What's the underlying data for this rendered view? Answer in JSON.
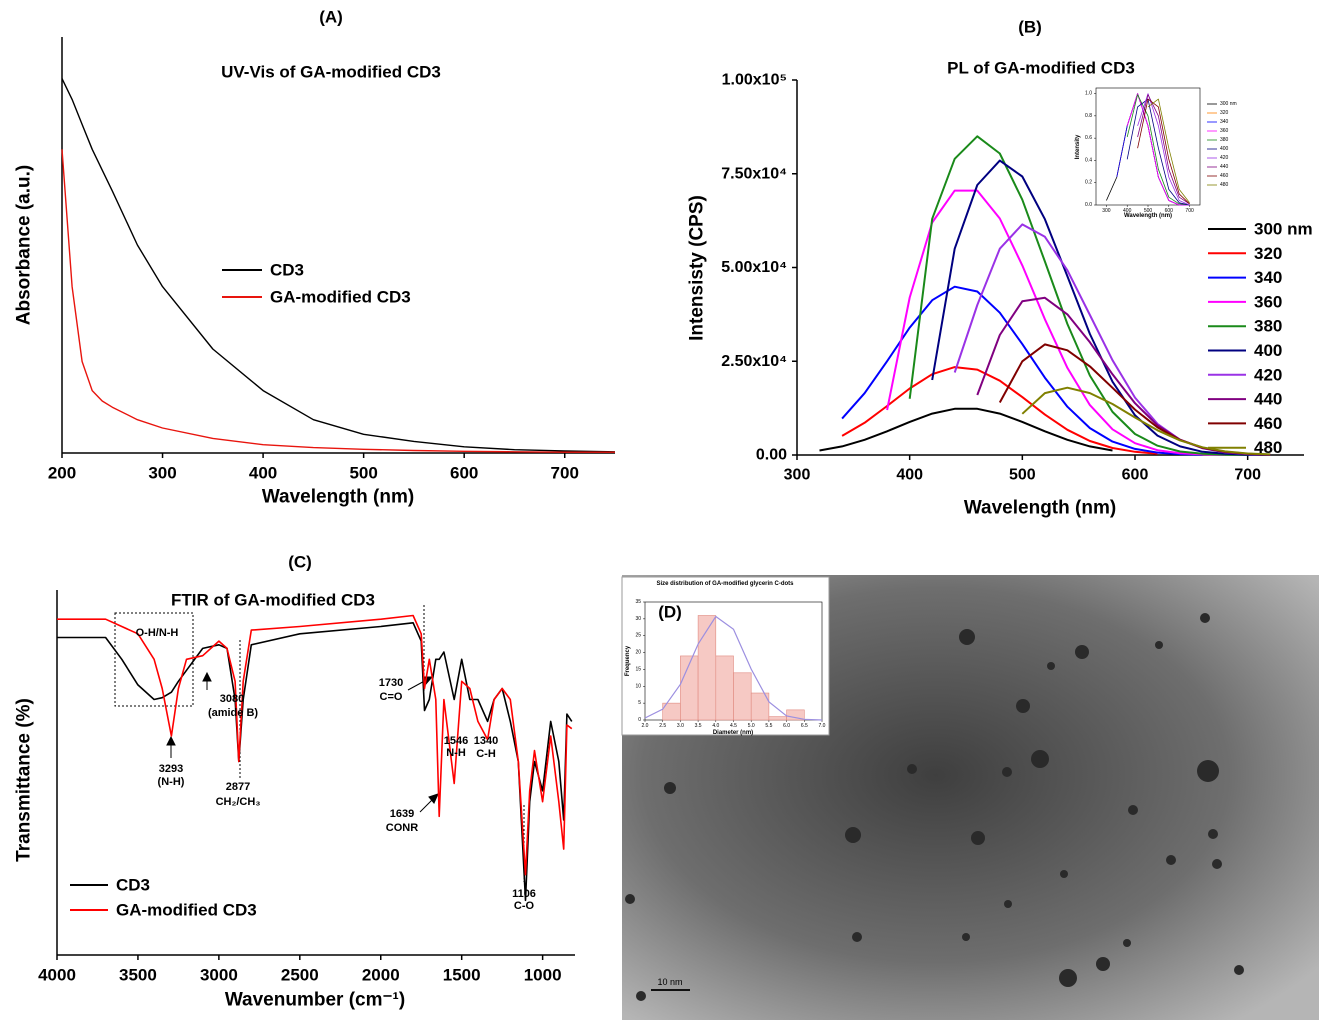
{
  "chart_data": [
    {
      "type": "line",
      "panel_label": "(A)",
      "title": "UV-Vis of GA-modified CD3",
      "xlabel": "Wavelength (nm)",
      "ylabel": "Absorbance (a.u.)",
      "x": [
        200,
        210,
        220,
        230,
        240,
        250,
        275,
        300,
        350,
        400,
        450,
        500,
        550,
        600,
        650,
        700,
        750
      ],
      "xlim": [
        200,
        750
      ],
      "xticks": [
        200,
        300,
        400,
        500,
        600,
        700
      ],
      "ylim": [
        0,
        1
      ],
      "series": [
        {
          "name": "CD3",
          "color": "#000000",
          "values": [
            0.9,
            0.85,
            0.79,
            0.73,
            0.68,
            0.63,
            0.5,
            0.4,
            0.25,
            0.15,
            0.08,
            0.045,
            0.028,
            0.015,
            0.008,
            0.005,
            0.003
          ]
        },
        {
          "name": "GA-modified CD3",
          "color": "#e8150e",
          "values": [
            0.73,
            0.4,
            0.22,
            0.15,
            0.125,
            0.11,
            0.08,
            0.06,
            0.035,
            0.02,
            0.013,
            0.009,
            0.006,
            0.004,
            0.003,
            0.002,
            0.002
          ]
        }
      ]
    },
    {
      "type": "line",
      "panel_label": "(B)",
      "title": "PL of GA-modified CD3",
      "xlabel": "Wavelength (nm)",
      "ylabel": "Intensisty (CPS)",
      "x": [
        300,
        320,
        340,
        360,
        380,
        400,
        420,
        440,
        460,
        480,
        500,
        520,
        540,
        560,
        580,
        600,
        620,
        640,
        660,
        680,
        700,
        720
      ],
      "xlim": [
        300,
        750
      ],
      "xticks": [
        300,
        400,
        500,
        600,
        700
      ],
      "ylim": [
        0,
        100000
      ],
      "yticks": [
        {
          "value": 0,
          "label": "0.00"
        },
        {
          "value": 25000,
          "label": "2.50x10⁴"
        },
        {
          "value": 50000,
          "label": "5.00x10⁴"
        },
        {
          "value": 75000,
          "label": "7.50x10⁴"
        },
        {
          "value": 100000,
          "label": "1.00x10⁵"
        }
      ],
      "series": [
        {
          "name": "300 nm",
          "color": "#000000",
          "values": [
            null,
            1200,
            2300,
            4060,
            6330,
            8840,
            11030,
            12330,
            12330,
            11030,
            8840,
            6330,
            4060,
            2300,
            1200,
            null,
            null,
            null,
            null,
            null,
            null,
            null
          ]
        },
        {
          "name": "320",
          "color": "#ff0000",
          "values": [
            null,
            null,
            5080,
            8600,
            13070,
            17740,
            21550,
            23430,
            22770,
            19810,
            15440,
            10760,
            6720,
            3740,
            1860,
            850,
            330,
            null,
            null,
            null,
            null,
            null
          ]
        },
        {
          "name": "340",
          "color": "#0000ff",
          "values": [
            null,
            null,
            9720,
            16470,
            25020,
            33980,
            41270,
            44870,
            43610,
            37940,
            29570,
            20610,
            12870,
            7160,
            3560,
            1620,
            630,
            230,
            70,
            null,
            null,
            null
          ]
        },
        {
          "name": "360",
          "color": "#ff00ff",
          "values": [
            null,
            null,
            null,
            null,
            12000,
            42000,
            62000,
            70500,
            70500,
            63060,
            50550,
            36180,
            23240,
            13300,
            6860,
            3150,
            1290,
            480,
            160,
            50,
            null,
            null
          ]
        },
        {
          "name": "380",
          "color": "#1a8a1a",
          "values": [
            null,
            null,
            null,
            null,
            null,
            15000,
            63000,
            79000,
            85000,
            80410,
            68090,
            51600,
            34940,
            21170,
            11480,
            5610,
            2470,
            940,
            330,
            100,
            30,
            null
          ]
        },
        {
          "name": "400",
          "color": "#000080",
          "values": [
            null,
            null,
            null,
            null,
            null,
            null,
            20000,
            55000,
            72000,
            78500,
            74260,
            62880,
            47650,
            32260,
            19550,
            10600,
            5180,
            2280,
            860,
            310,
            90,
            30
          ]
        },
        {
          "name": "420",
          "color": "#9a32e6",
          "values": [
            null,
            null,
            null,
            null,
            null,
            null,
            null,
            22000,
            40000,
            55000,
            61500,
            58180,
            49260,
            37330,
            25280,
            15310,
            8300,
            4060,
            1780,
            680,
            240,
            70
          ]
        },
        {
          "name": "440",
          "color": "#800080",
          "values": [
            null,
            null,
            null,
            null,
            null,
            null,
            null,
            null,
            16000,
            32000,
            41000,
            41910,
            37490,
            30050,
            21510,
            13810,
            7910,
            4080,
            1870,
            770,
            280,
            90
          ]
        },
        {
          "name": "460",
          "color": "#800000",
          "values": [
            null,
            null,
            null,
            null,
            null,
            null,
            null,
            null,
            null,
            14000,
            25000,
            29500,
            27910,
            23630,
            17910,
            12120,
            7350,
            3980,
            1950,
            860,
            320,
            120
          ]
        },
        {
          "name": "480",
          "color": "#808000",
          "values": [
            null,
            null,
            null,
            null,
            null,
            null,
            null,
            null,
            null,
            null,
            11000,
            16500,
            17950,
            16510,
            13590,
            10010,
            6590,
            3890,
            2050,
            970,
            410,
            150
          ]
        }
      ]
    },
    {
      "type": "line",
      "xlabel": "Wavelength (nm)",
      "ylabel": "Intensity",
      "x": [
        300,
        350,
        400,
        450,
        500,
        550,
        600,
        650,
        700
      ],
      "xlim": [
        250,
        750
      ],
      "xticks": [
        300,
        400,
        500,
        600,
        700
      ],
      "ylim": [
        0,
        1.05
      ],
      "yticks": [
        {
          "value": 0,
          "label": "0.0"
        },
        {
          "value": 0.2,
          "label": "0.2"
        },
        {
          "value": 0.4,
          "label": "0.4"
        },
        {
          "value": 0.6,
          "label": "0.6"
        },
        {
          "value": 0.8,
          "label": "0.8"
        },
        {
          "value": 1,
          "label": "1.0"
        }
      ],
      "series": [
        {
          "name": "300 nm",
          "color": "#000000",
          "values": [
            0.04,
            0.25,
            0.71,
            1.0,
            0.71,
            0.25,
            0.04,
            0.0,
            null
          ]
        },
        {
          "name": "320",
          "color": "#ff7f00",
          "values": [
            null,
            0.25,
            0.71,
            1.0,
            0.71,
            0.25,
            0.04,
            0.0,
            null
          ]
        },
        {
          "name": "340",
          "color": "#0000ff",
          "values": [
            null,
            0.25,
            0.71,
            1.0,
            0.71,
            0.25,
            0.04,
            0.0,
            0.0
          ]
        },
        {
          "name": "360",
          "color": "#ff00ff",
          "values": [
            null,
            null,
            0.71,
            1.0,
            0.71,
            0.25,
            0.04,
            0.0,
            0.0
          ]
        },
        {
          "name": "380",
          "color": "#1a8a1a",
          "values": [
            null,
            null,
            0.61,
            0.99,
            0.8,
            0.32,
            0.07,
            0.01,
            0.0
          ]
        },
        {
          "name": "400",
          "color": "#000080",
          "values": [
            null,
            null,
            0.41,
            0.88,
            0.95,
            0.51,
            0.14,
            0.02,
            0.0
          ]
        },
        {
          "name": "420",
          "color": "#9a32e6",
          "values": [
            null,
            null,
            null,
            0.71,
            1.0,
            0.71,
            0.25,
            0.04,
            0.0
          ]
        },
        {
          "name": "440",
          "color": "#800080",
          "values": [
            null,
            null,
            null,
            0.61,
            0.99,
            0.8,
            0.32,
            0.07,
            0.01
          ]
        },
        {
          "name": "460",
          "color": "#800000",
          "values": [
            null,
            null,
            null,
            0.51,
            0.95,
            0.88,
            0.41,
            0.1,
            0.01
          ]
        },
        {
          "name": "480",
          "color": "#808000",
          "values": [
            null,
            null,
            null,
            null,
            0.88,
            0.95,
            0.51,
            0.14,
            0.02
          ]
        }
      ]
    },
    {
      "type": "line",
      "panel_label": "(C)",
      "title": "FTIR of GA-modified CD3",
      "xlabel": "Wavenumber (cm⁻¹)",
      "ylabel": "Transmittance (%)",
      "x": [
        4000,
        3700,
        3600,
        3500,
        3400,
        3350,
        3293,
        3250,
        3200,
        3100,
        3000,
        2950,
        2900,
        2877,
        2850,
        2800,
        2500,
        2000,
        1800,
        1750,
        1730,
        1700,
        1660,
        1639,
        1610,
        1546,
        1500,
        1450,
        1400,
        1340,
        1300,
        1250,
        1200,
        1150,
        1106,
        1080,
        1050,
        1000,
        950,
        900,
        870,
        850,
        820
      ],
      "xlim": [
        4000,
        800
      ],
      "xticks": [
        4000,
        3500,
        3000,
        2500,
        2000,
        1500,
        1000
      ],
      "ylim": [
        0,
        100
      ],
      "series": [
        {
          "name": "CD3",
          "color": "#000000",
          "values": [
            87,
            87,
            81,
            74,
            70,
            70.5,
            72,
            75,
            78,
            84,
            85,
            84,
            70,
            53,
            70,
            85,
            88,
            90,
            91,
            86,
            67,
            70,
            81,
            81,
            83,
            70,
            81,
            70,
            70,
            64,
            70,
            73,
            64,
            53,
            15,
            42,
            53,
            45,
            64,
            53,
            37,
            66,
            64
          ]
        },
        {
          "name": "GA-modified CD3",
          "color": "#ff0000",
          "values": [
            92,
            92,
            90,
            88,
            81,
            73,
            60,
            73,
            81,
            82,
            86,
            84,
            75,
            53,
            75,
            89,
            90,
            92,
            93,
            88,
            73,
            81,
            70,
            38,
            70,
            47,
            75,
            73,
            64,
            59,
            70,
            73,
            70,
            53,
            22,
            45,
            56,
            42,
            60,
            42,
            29,
            63,
            62
          ]
        }
      ],
      "annotations": [
        "O-H/N-H",
        "3293",
        "(N-H)",
        "3080",
        "(amide B)",
        "2877",
        "CH₂/CH₃",
        "1730",
        "C=O",
        "1639",
        "CONR",
        "1546",
        "N-H",
        "1340",
        "C-H",
        "1106",
        "C-O"
      ]
    },
    {
      "type": "histogram",
      "panel_label": "(D)",
      "title": "Size distribution of GA-modified glycerin C-dots",
      "xlabel": "Diameter (nm)",
      "ylabel": "Frequency",
      "bins": [
        2.5,
        3,
        3.5,
        4,
        4.5,
        5,
        5.5,
        6,
        6.5
      ],
      "counts": [
        5,
        19,
        31,
        19,
        14,
        8,
        1,
        3
      ],
      "color": "#f6c9c4",
      "fit": {
        "color": "#9c8fe0",
        "x": [
          2,
          2.5,
          3,
          3.5,
          4,
          4.5,
          5,
          5.5,
          6,
          6.5,
          7
        ],
        "values": [
          0.6,
          3.2,
          10.6,
          22.5,
          30.7,
          26.9,
          15.1,
          5.4,
          1.2,
          0.2,
          0
        ]
      },
      "xlim": [
        2,
        7
      ],
      "ylim": [
        0,
        35
      ],
      "xticks": [
        {
          "value": 2,
          "label": "2.0"
        },
        {
          "value": 2.5,
          "label": "2.5"
        },
        {
          "value": 3,
          "label": "3.0"
        },
        {
          "value": 3.5,
          "label": "3.5"
        },
        {
          "value": 4,
          "label": "4.0"
        },
        {
          "value": 4.5,
          "label": "4.5"
        },
        {
          "value": 5,
          "label": "5.0"
        },
        {
          "value": 5.5,
          "label": "5.5"
        },
        {
          "value": 6,
          "label": "6.0"
        },
        {
          "value": 6.5,
          "label": "6.5"
        },
        {
          "value": 7,
          "label": "7.0"
        }
      ],
      "yticks": [
        0,
        5,
        10,
        15,
        20,
        25,
        30,
        35
      ]
    }
  ],
  "image": {
    "scale_bar": "10 nm"
  }
}
